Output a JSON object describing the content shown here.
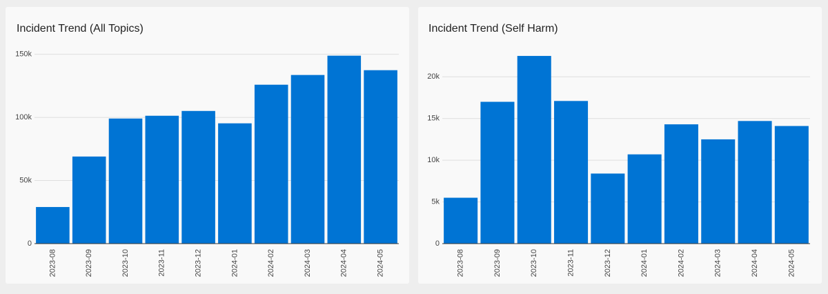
{
  "chart_data": [
    {
      "type": "bar",
      "title": "Incident Trend (All Topics)",
      "categories": [
        "2023-08",
        "2023-09",
        "2023-10",
        "2023-11",
        "2023-12",
        "2024-01",
        "2024-02",
        "2024-03",
        "2024-04",
        "2024-05"
      ],
      "values": [
        29000,
        69000,
        99100,
        101300,
        105100,
        95300,
        125900,
        133600,
        148900,
        137400
      ],
      "color": "#0074d4",
      "ylim": [
        0,
        152000
      ],
      "yticks": [
        0,
        {
          "value": 50000,
          "label": "50k"
        },
        {
          "value": 100000,
          "label": "100k"
        },
        {
          "value": 150000,
          "label": "150k"
        }
      ],
      "grid": true
    },
    {
      "type": "bar",
      "title": "Incident Trend (Self Harm)",
      "categories": [
        "2023-08",
        "2023-09",
        "2023-10",
        "2023-11",
        "2023-12",
        "2024-01",
        "2024-02",
        "2024-03",
        "2024-04",
        "2024-05"
      ],
      "values": [
        5500,
        17000,
        22500,
        17100,
        8400,
        10700,
        14300,
        12500,
        14700,
        14100
      ],
      "color": "#0074d4",
      "ylim": [
        0,
        23000
      ],
      "yticks": [
        0,
        {
          "value": 5000,
          "label": "5k"
        },
        {
          "value": 10000,
          "label": "10k"
        },
        {
          "value": 15000,
          "label": "15k"
        },
        {
          "value": 20000,
          "label": "20k"
        }
      ],
      "grid": true
    }
  ]
}
